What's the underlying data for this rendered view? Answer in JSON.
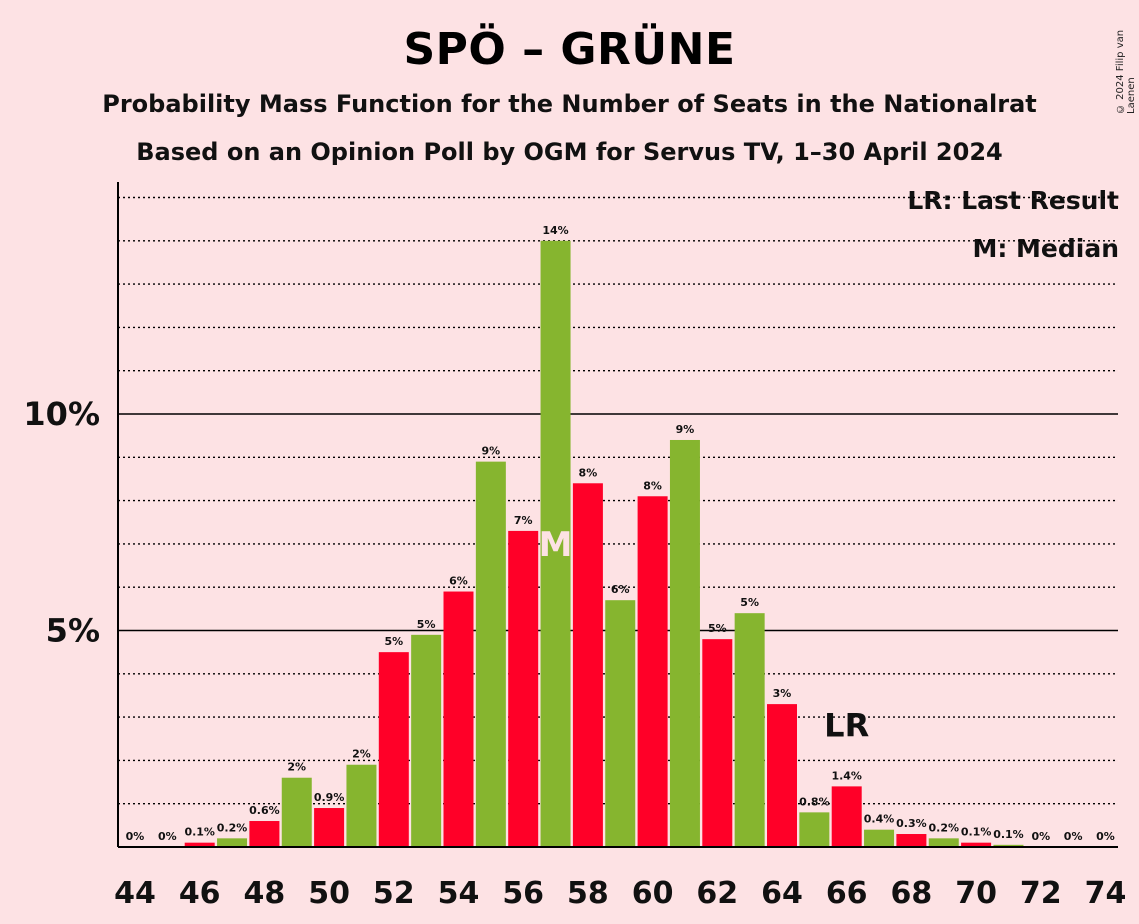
{
  "header": {
    "title": "SPÖ – GRÜNE",
    "subtitle1": "Probability Mass Function for the Number of Seats in the Nationalrat",
    "subtitle2": "Based on an Opinion Poll by OGM for Servus TV, 1–30 April 2024",
    "copyright": "© 2024 Filip van Laenen"
  },
  "legend": {
    "last_result": "LR: Last Result",
    "median": "M: Median"
  },
  "colors": {
    "background": "#fde2e4",
    "red": "#ff0028",
    "green": "#86b52f"
  },
  "chart_data": {
    "type": "bar",
    "x": [
      44,
      45,
      46,
      47,
      48,
      49,
      50,
      51,
      52,
      53,
      54,
      55,
      56,
      57,
      58,
      59,
      60,
      61,
      62,
      63,
      64,
      65,
      66,
      67,
      68,
      69,
      70,
      71,
      72,
      73,
      74
    ],
    "values": [
      0,
      0,
      0.1,
      0.2,
      0.6,
      1.6,
      0.9,
      1.9,
      4.5,
      4.9,
      5.9,
      8.9,
      7.3,
      14.0,
      8.4,
      5.7,
      8.1,
      9.4,
      4.8,
      5.4,
      3.3,
      0.8,
      1.4,
      0.4,
      0.3,
      0.2,
      0.1,
      0.05,
      0,
      0,
      0
    ],
    "labels": [
      "0%",
      "0%",
      "0.1%",
      "0.2%",
      "0.6%",
      "2%",
      "0.9%",
      "2%",
      "5%",
      "5%",
      "6%",
      "9%",
      "7%",
      "14%",
      "8%",
      "6%",
      "8%",
      "9%",
      "5%",
      "5%",
      "3%",
      "0.8%",
      "1.4%",
      "0.4%",
      "0.3%",
      "0.2%",
      "0.1%",
      "0.1%",
      "0%",
      "0%",
      "0%"
    ],
    "colors": [
      "red",
      "green",
      "red",
      "green",
      "red",
      "green",
      "red",
      "green",
      "red",
      "green",
      "red",
      "green",
      "red",
      "green",
      "red",
      "green",
      "red",
      "green",
      "red",
      "green",
      "red",
      "green",
      "red",
      "green",
      "red",
      "green",
      "red",
      "green",
      "red",
      "green",
      "red"
    ],
    "x_tick_labels": [
      "44",
      "46",
      "48",
      "50",
      "52",
      "54",
      "56",
      "58",
      "60",
      "62",
      "64",
      "66",
      "68",
      "70",
      "72",
      "74"
    ],
    "y_tick_labels": [
      {
        "value": 5,
        "label": "5%"
      },
      {
        "value": 10,
        "label": "10%"
      }
    ],
    "ylim": [
      0,
      15
    ],
    "grid_minor_step": 1,
    "median": {
      "seat": 57,
      "marker": "M"
    },
    "last_result": {
      "seat": 66,
      "marker": "LR"
    }
  }
}
